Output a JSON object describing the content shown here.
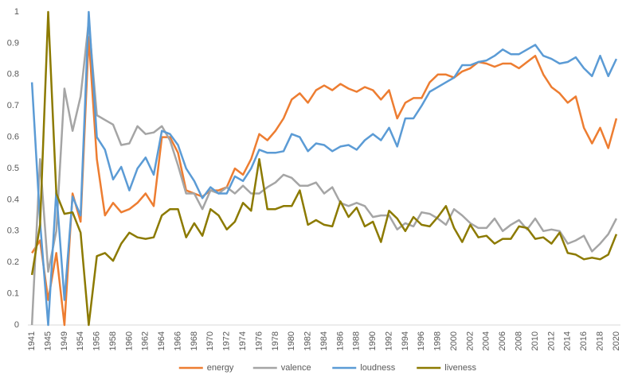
{
  "chart_data": {
    "type": "line",
    "categories": [
      "1941",
      null,
      "1945",
      null,
      "1949",
      null,
      "1954",
      null,
      "1956",
      null,
      "1958",
      null,
      "1960",
      null,
      "1962",
      null,
      "1964",
      null,
      "1966",
      null,
      "1968",
      null,
      "1970",
      null,
      "1972",
      null,
      "1974",
      null,
      "1976",
      null,
      "1978",
      null,
      "1980",
      null,
      "1982",
      null,
      "1984",
      null,
      "1986",
      null,
      "1988",
      null,
      "1990",
      null,
      "1992",
      null,
      "1994",
      null,
      "1996",
      null,
      "1998",
      null,
      "2000",
      null,
      "2002",
      null,
      "2004",
      null,
      "2006",
      null,
      "2008",
      null,
      "2010",
      null,
      "2012",
      null,
      "2014",
      null,
      "2016",
      null,
      "2018",
      null,
      "2020"
    ],
    "series": [
      {
        "name": "energy",
        "color": "#ed7d31",
        "values": [
          0.23,
          0.27,
          0.08,
          0.23,
          0.0,
          0.42,
          0.33,
          0.92,
          0.53,
          0.35,
          0.39,
          0.36,
          0.37,
          0.39,
          0.42,
          0.38,
          0.6,
          0.6,
          0.55,
          0.43,
          0.42,
          0.41,
          0.43,
          0.43,
          0.44,
          0.5,
          0.48,
          0.53,
          0.61,
          0.59,
          0.62,
          0.66,
          0.72,
          0.74,
          0.71,
          0.75,
          0.765,
          0.75,
          0.77,
          0.755,
          0.745,
          0.76,
          0.75,
          0.72,
          0.75,
          0.66,
          0.71,
          0.725,
          0.725,
          0.775,
          0.8,
          0.8,
          0.79,
          0.81,
          0.82,
          0.84,
          0.835,
          0.825,
          0.835,
          0.835,
          0.82,
          0.84,
          0.86,
          0.8,
          0.76,
          0.74,
          0.71,
          0.73,
          0.63,
          0.58,
          0.63,
          0.565,
          0.66
        ]
      },
      {
        "name": "valence",
        "color": "#a5a5a5",
        "values": [
          0.0,
          0.53,
          0.17,
          0.3,
          0.755,
          0.62,
          0.73,
          0.97,
          0.67,
          0.655,
          0.64,
          0.575,
          0.58,
          0.635,
          0.61,
          0.615,
          0.635,
          0.59,
          0.51,
          0.42,
          0.42,
          0.37,
          0.43,
          0.42,
          0.44,
          0.42,
          0.445,
          0.42,
          0.42,
          0.44,
          0.455,
          0.48,
          0.47,
          0.445,
          0.445,
          0.455,
          0.42,
          0.44,
          0.39,
          0.38,
          0.39,
          0.38,
          0.345,
          0.35,
          0.35,
          0.305,
          0.325,
          0.315,
          0.36,
          0.355,
          0.34,
          0.32,
          0.37,
          0.35,
          0.325,
          0.31,
          0.31,
          0.34,
          0.3,
          0.32,
          0.335,
          0.305,
          0.34,
          0.3,
          0.305,
          0.3,
          0.26,
          0.27,
          0.285,
          0.235,
          0.26,
          0.29,
          0.34
        ]
      },
      {
        "name": "loudness",
        "color": "#5b9bd5",
        "values": [
          0.775,
          0.33,
          0.0,
          0.43,
          0.08,
          0.41,
          0.35,
          1.0,
          0.6,
          0.56,
          0.465,
          0.505,
          0.43,
          0.5,
          0.535,
          0.48,
          0.62,
          0.61,
          0.575,
          0.5,
          0.46,
          0.405,
          0.44,
          0.42,
          0.42,
          0.475,
          0.46,
          0.5,
          0.56,
          0.55,
          0.55,
          0.555,
          0.61,
          0.6,
          0.555,
          0.58,
          0.575,
          0.555,
          0.57,
          0.575,
          0.56,
          0.59,
          0.61,
          0.59,
          0.63,
          0.57,
          0.66,
          0.66,
          0.7,
          0.745,
          0.76,
          0.775,
          0.79,
          0.83,
          0.83,
          0.84,
          0.845,
          0.86,
          0.88,
          0.865,
          0.865,
          0.88,
          0.895,
          0.86,
          0.85,
          0.835,
          0.84,
          0.855,
          0.82,
          0.795,
          0.86,
          0.795,
          0.85
        ]
      },
      {
        "name": "liveness",
        "color": "#8c7a00",
        "values": [
          0.16,
          0.32,
          1.0,
          0.42,
          0.355,
          0.36,
          0.295,
          0.0,
          0.22,
          0.23,
          0.205,
          0.26,
          0.295,
          0.28,
          0.275,
          0.28,
          0.35,
          0.37,
          0.37,
          0.28,
          0.325,
          0.285,
          0.37,
          0.35,
          0.305,
          0.33,
          0.39,
          0.365,
          0.53,
          0.37,
          0.37,
          0.38,
          0.38,
          0.43,
          0.32,
          0.335,
          0.32,
          0.315,
          0.395,
          0.345,
          0.375,
          0.315,
          0.33,
          0.265,
          0.365,
          0.34,
          0.3,
          0.345,
          0.32,
          0.315,
          0.345,
          0.38,
          0.31,
          0.265,
          0.32,
          0.28,
          0.285,
          0.26,
          0.275,
          0.275,
          0.315,
          0.31,
          0.275,
          0.28,
          0.26,
          0.295,
          0.23,
          0.225,
          0.21,
          0.215,
          0.21,
          0.225,
          0.29
        ]
      }
    ],
    "ylim": [
      0,
      1
    ],
    "yticks": [
      0,
      0.1,
      0.2,
      0.3,
      0.4,
      0.5,
      0.6,
      0.7,
      0.8,
      0.9,
      1
    ],
    "grid": false,
    "legend": "bottom"
  }
}
